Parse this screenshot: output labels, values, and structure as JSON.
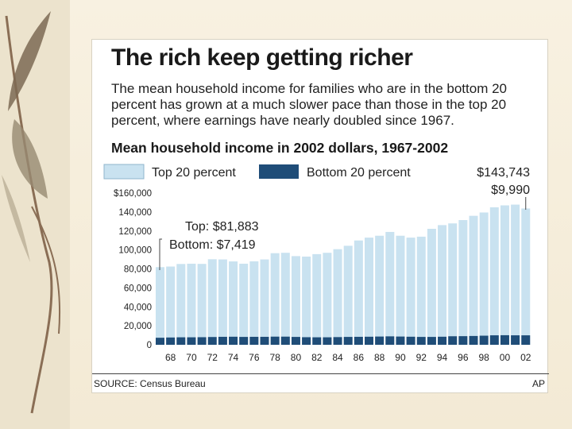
{
  "slide": {
    "title": "The rich keep getting richer",
    "subtitle": "The mean household income for families who are in the bottom 20 percent has grown at a much slower pace than those in the top 20 percent, where earnings have nearly doubled since 1967.",
    "chart_heading": "Mean household income in 2002 dollars, 1967-2002",
    "source": "SOURCE: Census Bureau",
    "credit": "AP"
  },
  "chart_data": {
    "type": "bar",
    "title": "Mean household income in 2002 dollars, 1967-2002",
    "xlabel": "",
    "ylabel": "",
    "ylim": [
      0,
      160000
    ],
    "yticks": [
      0,
      20000,
      40000,
      60000,
      80000,
      100000,
      120000,
      140000,
      160000
    ],
    "ytick_labels": [
      "0",
      "20,000",
      "40,000",
      "60,000",
      "80,000",
      "100,000",
      "120,000",
      "140,000",
      "$160,000"
    ],
    "categories": [
      "1967",
      "1968",
      "1969",
      "1970",
      "1971",
      "1972",
      "1973",
      "1974",
      "1975",
      "1976",
      "1977",
      "1978",
      "1979",
      "1980",
      "1981",
      "1982",
      "1983",
      "1984",
      "1985",
      "1986",
      "1987",
      "1988",
      "1989",
      "1990",
      "1991",
      "1992",
      "1993",
      "1994",
      "1995",
      "1996",
      "1997",
      "1998",
      "1999",
      "2000",
      "2001",
      "2002"
    ],
    "xtick_labels": [
      "68",
      "70",
      "72",
      "74",
      "76",
      "78",
      "80",
      "82",
      "84",
      "86",
      "88",
      "90",
      "92",
      "94",
      "96",
      "98",
      "00",
      "02"
    ],
    "series": [
      {
        "name": "Top 20 percent",
        "color": "#c9e2f0",
        "values": [
          81883,
          82500,
          85200,
          85500,
          85300,
          90200,
          90000,
          87900,
          85500,
          88000,
          90000,
          96600,
          97000,
          93500,
          93000,
          95600,
          97000,
          100800,
          104400,
          110000,
          113000,
          115000,
          119000,
          115000,
          113000,
          114000,
          122300,
          126200,
          128000,
          131500,
          136000,
          139500,
          145000,
          147000,
          147800,
          143743
        ]
      },
      {
        "name": "Bottom 20 percent",
        "color": "#1f4d78",
        "values": [
          7419,
          7700,
          7900,
          7900,
          8000,
          8200,
          8400,
          8500,
          8300,
          8400,
          8400,
          8600,
          8600,
          8300,
          8000,
          7900,
          7900,
          8100,
          8300,
          8400,
          8500,
          8700,
          8900,
          8700,
          8500,
          8300,
          8300,
          8500,
          9000,
          9100,
          9300,
          9600,
          10000,
          10100,
          10000,
          9990
        ]
      }
    ],
    "annotations": {
      "start_top": "Top: $81,883",
      "start_bottom": "Bottom: $7,419",
      "end_top": "$143,743",
      "end_bottom": "$9,990"
    },
    "legend": {
      "position": "top",
      "top_label": "Top 20 percent",
      "bottom_label": "Bottom 20 percent"
    },
    "grid": false
  }
}
